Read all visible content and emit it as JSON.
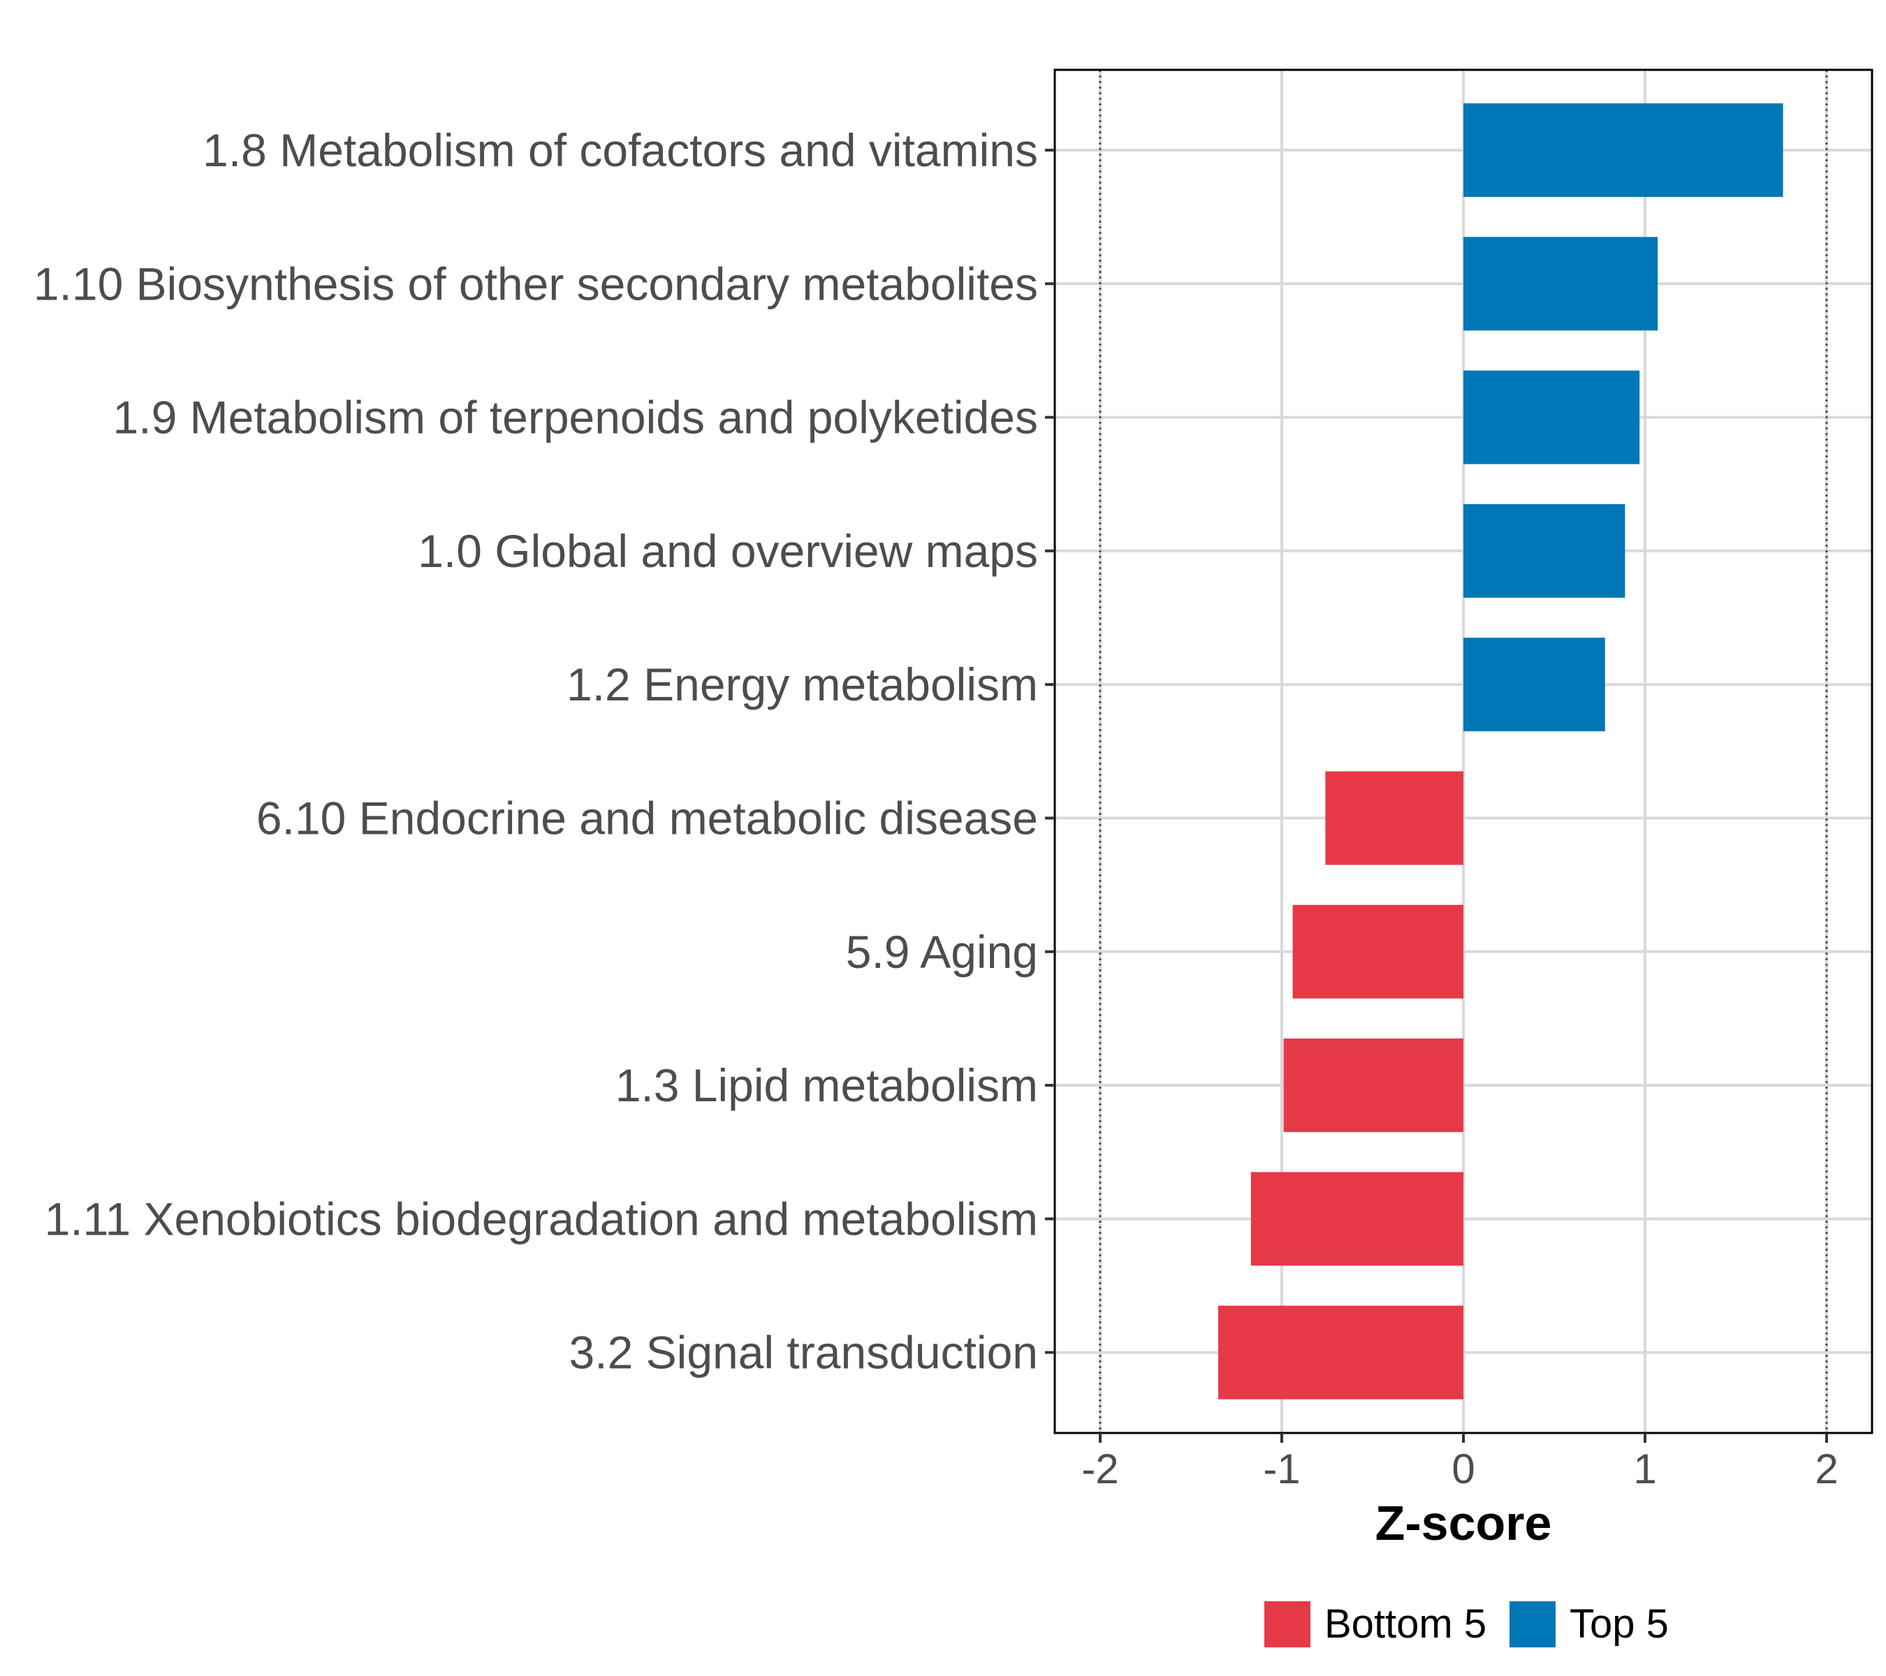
{
  "chart_data": {
    "type": "bar",
    "orientation": "horizontal",
    "title": "",
    "xlabel": "Z-score",
    "ylabel": "",
    "xlim": [
      -2.25,
      2.25
    ],
    "x_ticks": [
      -2,
      -1,
      0,
      1,
      2
    ],
    "x_tick_labels": [
      "-2",
      "-1",
      "0",
      "1",
      "2"
    ],
    "reference_lines": [
      -2,
      2
    ],
    "grid": true,
    "legend_position": "bottom",
    "categories": [
      "1.8 Metabolism of cofactors and vitamins",
      "1.10 Biosynthesis of other secondary metabolites",
      "1.9 Metabolism of terpenoids and polyketides",
      "1.0 Global and overview maps",
      "1.2 Energy metabolism",
      "6.10 Endocrine and metabolic disease",
      "5.9 Aging",
      "1.3 Lipid metabolism",
      "1.11 Xenobiotics biodegradation and metabolism",
      "3.2 Signal transduction"
    ],
    "values": [
      1.76,
      1.07,
      0.97,
      0.89,
      0.78,
      -0.76,
      -0.94,
      -0.99,
      -1.17,
      -1.35
    ],
    "groups": [
      "Top 5",
      "Top 5",
      "Top 5",
      "Top 5",
      "Top 5",
      "Bottom 5",
      "Bottom 5",
      "Bottom 5",
      "Bottom 5",
      "Bottom 5"
    ],
    "legend": [
      {
        "name": "Bottom 5",
        "color": "#e63946"
      },
      {
        "name": "Top 5",
        "color": "#0077b6"
      }
    ]
  }
}
